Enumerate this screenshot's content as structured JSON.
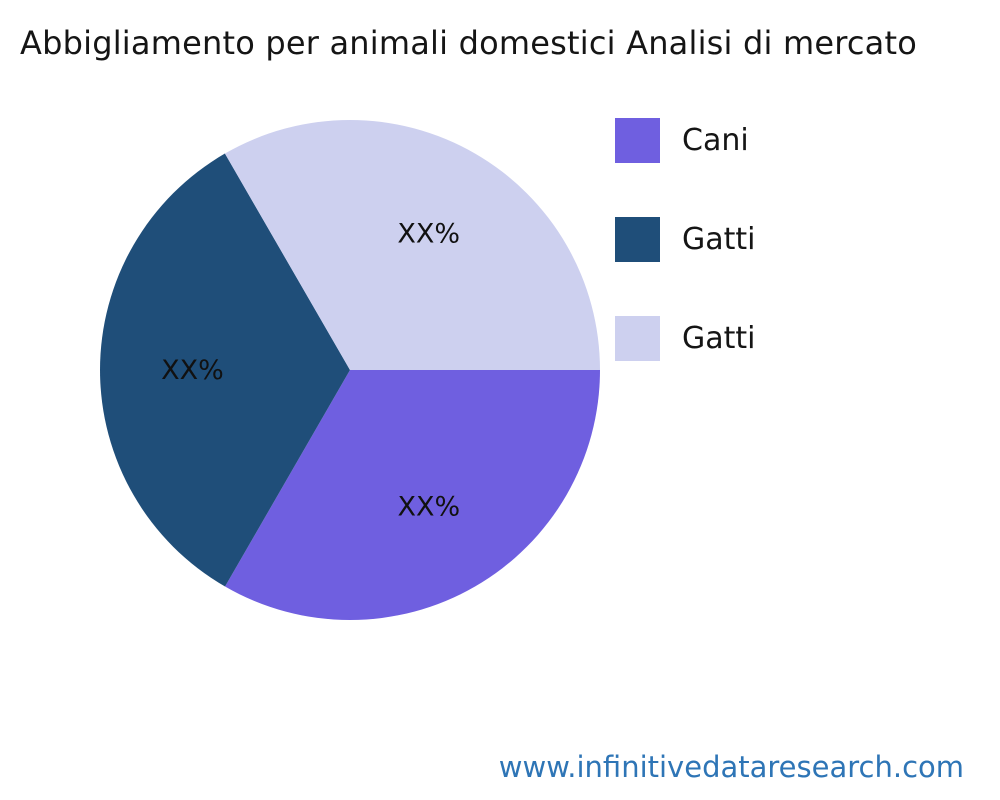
{
  "title": "Abbigliamento per animali domestici Analisi di mercato",
  "footer": {
    "url": "www.infinitivedataresearch.com"
  },
  "colors": {
    "slice_cani": "#6F5FE0",
    "slice_gatti_dark": "#1F4E79",
    "slice_gatti_light": "#CDD0EF",
    "link": "#2E75B6",
    "text": "#151515"
  },
  "legend": [
    {
      "label": "Cani",
      "color": "#6F5FE0"
    },
    {
      "label": "Gatti",
      "color": "#1F4E79"
    },
    {
      "label": "Gatti",
      "color": "#CDD0EF"
    }
  ],
  "chart_data": {
    "type": "pie",
    "title": "Abbigliamento per animali domestici Analisi di mercato",
    "labels": [
      "Cani",
      "Gatti",
      "Gatti"
    ],
    "values": [
      33.33,
      33.33,
      33.34
    ],
    "value_labels": [
      "XX%",
      "XX%",
      "XX%"
    ],
    "colors": [
      "#6F5FE0",
      "#1F4E79",
      "#CDD0EF"
    ],
    "start_angle_deg": 0,
    "direction": "clockwise",
    "legend_position": "right",
    "annotation": "percentages shown as placeholder XX%"
  }
}
